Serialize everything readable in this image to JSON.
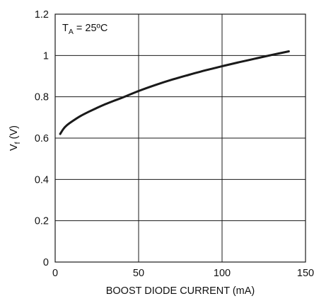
{
  "chart_data": {
    "type": "line",
    "title": "",
    "xlabel": "BOOST DIODE CURRENT (mA)",
    "ylabel": {
      "main": "V",
      "sub": "f",
      "unit": " (V)"
    },
    "annotation": {
      "main": "T",
      "sub": "A",
      "rest": " = 25ºC"
    },
    "xlim": [
      0,
      150
    ],
    "ylim": [
      0,
      1.2
    ],
    "xticks": [
      0,
      50,
      100,
      150
    ],
    "xtick_labels": [
      "0",
      "50",
      "100",
      "150"
    ],
    "yticks": [
      0,
      0.2,
      0.4,
      0.6,
      0.8,
      1.0,
      1.2
    ],
    "ytick_labels": [
      "0",
      "0.2",
      "0.4",
      "0.6",
      "0.8",
      "1",
      "1.2"
    ],
    "grid": true,
    "series": [
      {
        "color": "#1a1a1a",
        "x": [
          3,
          5,
          7,
          10,
          15,
          20,
          25,
          30,
          35,
          40,
          50,
          60,
          70,
          80,
          90,
          100,
          110,
          120,
          130,
          140
        ],
        "y": [
          0.62,
          0.645,
          0.662,
          0.68,
          0.706,
          0.727,
          0.746,
          0.764,
          0.78,
          0.795,
          0.828,
          0.857,
          0.883,
          0.906,
          0.928,
          0.948,
          0.967,
          0.985,
          1.003,
          1.02
        ]
      }
    ]
  }
}
